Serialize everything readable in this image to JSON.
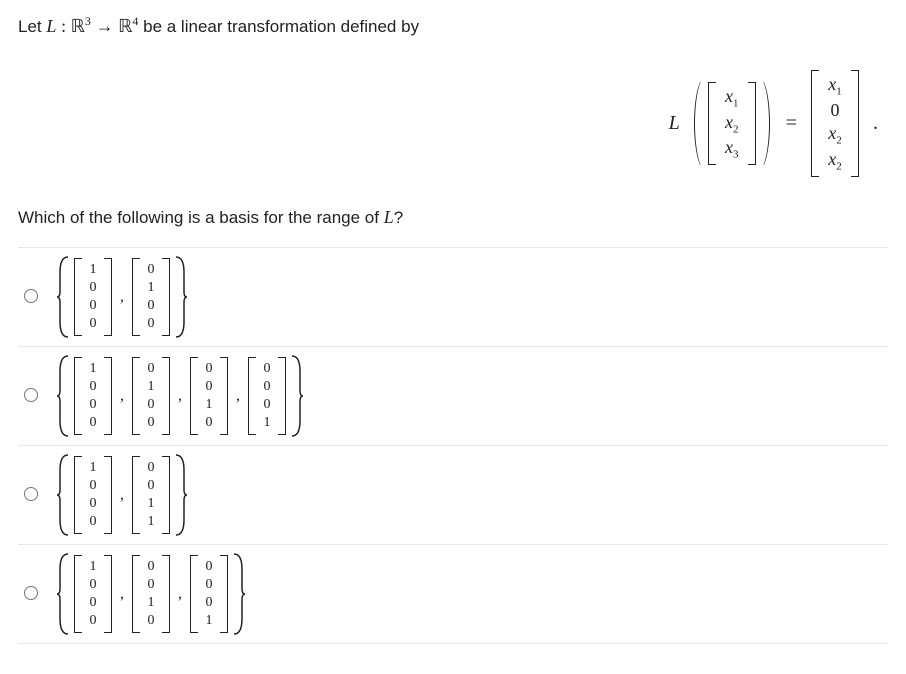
{
  "intro": {
    "prefix": "Let ",
    "L": "L",
    "colon": " : ",
    "R": "ℝ",
    "exp3": "3",
    "arrow": " → ",
    "exp4": "4",
    "suffix": " be a linear transformation defined by"
  },
  "equation": {
    "L": "L",
    "eq": "=",
    "period": ".",
    "input_vec": [
      "x₁",
      "x₂",
      "x₃"
    ],
    "output_vec": [
      "x₁",
      "0",
      "x₂",
      "x₂"
    ]
  },
  "question": "Which of the following is a basis for the range of ",
  "question_L": "L",
  "question_end": "?",
  "options": [
    {
      "vectors": [
        [
          "1",
          "0",
          "0",
          "0"
        ],
        [
          "0",
          "1",
          "0",
          "0"
        ]
      ]
    },
    {
      "vectors": [
        [
          "1",
          "0",
          "0",
          "0"
        ],
        [
          "0",
          "1",
          "0",
          "0"
        ],
        [
          "0",
          "0",
          "1",
          "0"
        ],
        [
          "0",
          "0",
          "0",
          "1"
        ]
      ]
    },
    {
      "vectors": [
        [
          "1",
          "0",
          "0",
          "0"
        ],
        [
          "0",
          "0",
          "1",
          "1"
        ]
      ]
    },
    {
      "vectors": [
        [
          "1",
          "0",
          "0",
          "0"
        ],
        [
          "0",
          "0",
          "1",
          "0"
        ],
        [
          "0",
          "0",
          "0",
          "1"
        ]
      ]
    }
  ],
  "style": {
    "text_color": "#222222",
    "border_color": "#e6e6e6",
    "background": "#ffffff"
  }
}
